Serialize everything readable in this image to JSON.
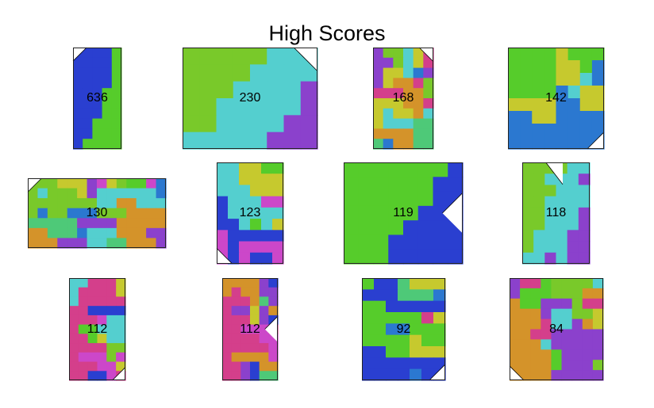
{
  "title": "High Scores",
  "palette": [
    "#2a3fd0",
    "#56cc2b",
    "#79c92a",
    "#8b41cc",
    "#54cfcf",
    "#c6c92e",
    "#cc47c9",
    "#d4932a",
    "#4ec978",
    "#2b78d0",
    "#d43f8b"
  ],
  "boards": [
    {
      "score": "636",
      "shape": "tall-narrow",
      "colors": [
        "#2a3fd0",
        "#56cc2b"
      ]
    },
    {
      "score": "230",
      "shape": "wide",
      "colors": [
        "#79c92a",
        "#54cfcf",
        "#8b41cc"
      ]
    },
    {
      "score": "168",
      "shape": "tall",
      "colors": [
        "#4ec978",
        "#54cfcf",
        "#c6c92e",
        "#d4932a",
        "#8b41cc",
        "#d43f8b",
        "#2b78d0",
        "#cc47c9",
        "#79c92a"
      ]
    },
    {
      "score": "142",
      "shape": "square",
      "colors": [
        "#cc47c9",
        "#4ec978",
        "#2b78d0",
        "#c6c92e",
        "#56cc2b",
        "#54cfcf"
      ]
    },
    {
      "score": "130",
      "shape": "very-wide",
      "colors": [
        "#d4932a",
        "#79c92a",
        "#4ec978",
        "#2b78d0",
        "#cc47c9",
        "#54cfcf",
        "#8b41cc",
        "#c6c92e",
        "#56cc2b"
      ]
    },
    {
      "score": "123",
      "shape": "tall",
      "colors": [
        "#cc47c9",
        "#54cfcf",
        "#2a3fd0",
        "#56cc2b",
        "#c6c92e"
      ]
    },
    {
      "score": "119",
      "shape": "wide",
      "colors": [
        "#56cc2b",
        "#2a3fd0"
      ]
    },
    {
      "score": "118",
      "shape": "tall",
      "colors": [
        "#79c92a",
        "#54cfcf",
        "#8b41cc"
      ]
    },
    {
      "score": "112",
      "shape": "tall",
      "colors": [
        "#56cc2b",
        "#54cfcf",
        "#c6c92e",
        "#2a3fd0",
        "#cc47c9",
        "#d43f8b",
        "#79c92a"
      ]
    },
    {
      "score": "112",
      "shape": "tall",
      "colors": [
        "#c6c92e",
        "#56cc2b",
        "#d43f8b",
        "#2a3fd0",
        "#d4932a",
        "#cc47c9",
        "#4ec978",
        "#8b41cc"
      ]
    },
    {
      "score": "92",
      "shape": "square",
      "colors": [
        "#2a3fd0",
        "#4ec978",
        "#c6c92e",
        "#d43f8b",
        "#2b78d0",
        "#d4932a",
        "#56cc2b",
        "#54cfcf"
      ]
    },
    {
      "score": "84",
      "shape": "square",
      "colors": [
        "#8b41cc",
        "#d43f8b",
        "#c6c92e",
        "#2a3fd0",
        "#56cc2b",
        "#54cfcf",
        "#d4932a",
        "#79c92a"
      ]
    }
  ]
}
